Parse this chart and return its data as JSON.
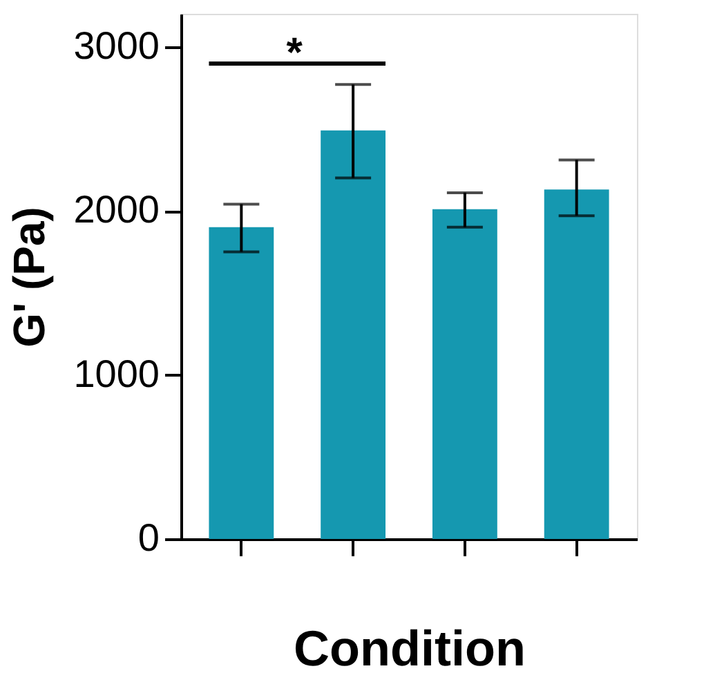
{
  "chart_data": {
    "type": "bar",
    "xlabel": "Condition",
    "ylabel": "G' (Pa)",
    "categories": [
      null,
      null,
      null,
      null
    ],
    "values": [
      1900,
      2490,
      2010,
      2130
    ],
    "errors": [
      [
        1750,
        2040
      ],
      [
        2200,
        2770
      ],
      [
        1900,
        2110
      ],
      [
        1970,
        2310
      ]
    ],
    "color": "#1598b0",
    "ylim": [
      0,
      3200
    ],
    "yticks": [
      0,
      1000,
      2000,
      3000
    ],
    "tick_labels": "y",
    "grid": false,
    "annotations": [
      "*"
    ]
  }
}
